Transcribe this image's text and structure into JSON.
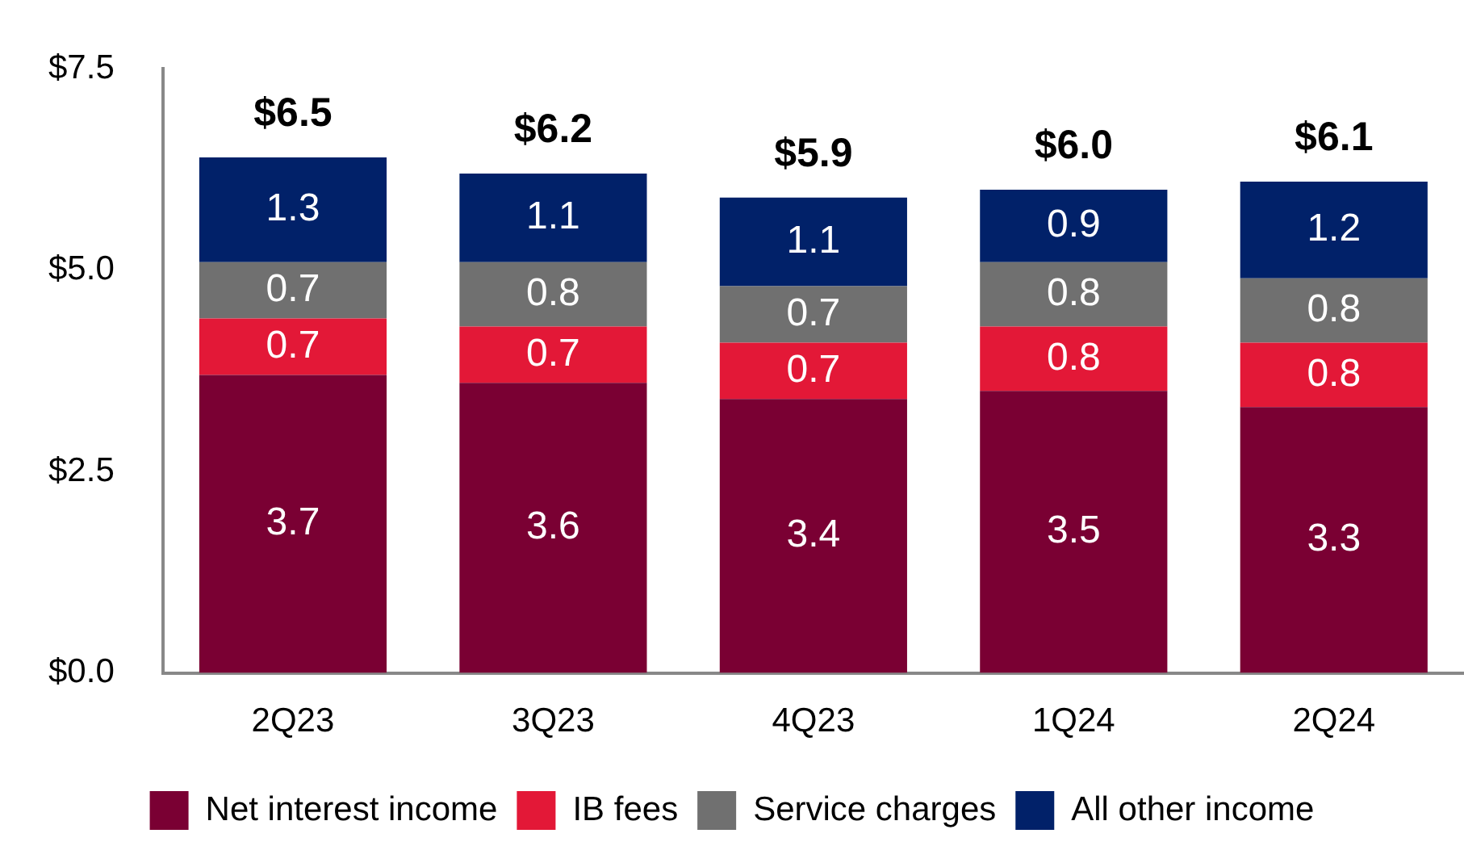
{
  "chart_data": {
    "type": "bar",
    "stacked": true,
    "categories": [
      "2Q23",
      "3Q23",
      "4Q23",
      "1Q24",
      "2Q24"
    ],
    "series": [
      {
        "name": "Net interest income",
        "color": "#7a0033",
        "values": [
          3.7,
          3.6,
          3.4,
          3.5,
          3.3
        ]
      },
      {
        "name": "IB fees",
        "color": "#e31837",
        "values": [
          0.7,
          0.7,
          0.7,
          0.8,
          0.8
        ]
      },
      {
        "name": "Service charges",
        "color": "#707070",
        "values": [
          0.7,
          0.8,
          0.7,
          0.8,
          0.8
        ]
      },
      {
        "name": "All other income",
        "color": "#012169",
        "values": [
          1.3,
          1.1,
          1.1,
          0.9,
          1.2
        ]
      }
    ],
    "ylim": [
      0,
      7.5
    ],
    "yticks": [
      {
        "value": 0,
        "label": "$0.0"
      },
      {
        "value": 2.5,
        "label": "$2.5"
      },
      {
        "value": 5,
        "label": "$5.0"
      },
      {
        "value": 7.5,
        "label": "$7.5"
      }
    ],
    "data_labels": true,
    "totals": [
      "$6.5",
      "$6.2",
      "$5.9",
      "$6.0",
      "$6.1"
    ],
    "grid": false,
    "legend": "bottom"
  }
}
